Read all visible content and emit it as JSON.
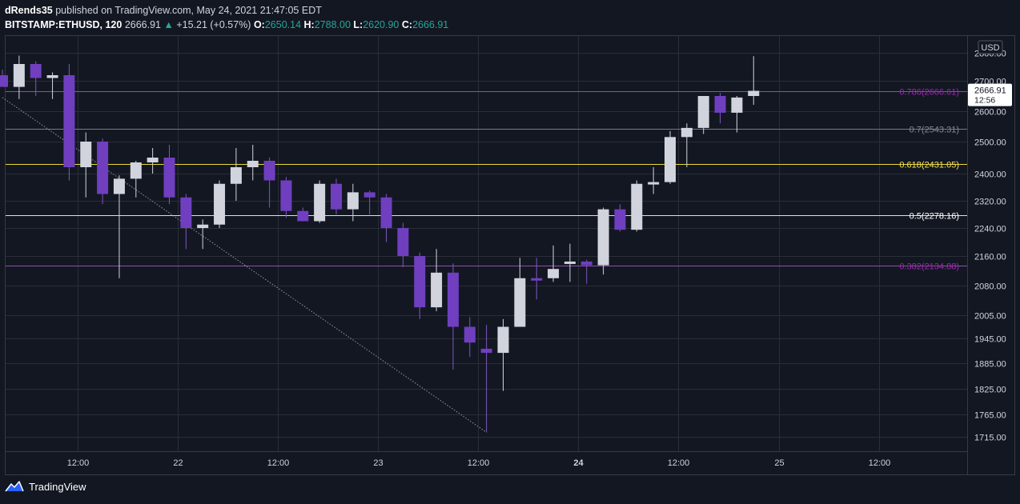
{
  "header": {
    "author": "dRends35",
    "published": "published on TradingView.com, May 24, 2021 21:47:05 EDT",
    "symbol": "BITSTAMP:ETHUSD, 120",
    "last": "2666.91",
    "change_arrow": "▲",
    "change": "+15.21 (+0.57%)",
    "o_label": "O:",
    "o_value": "2650.14",
    "h_label": "H:",
    "h_value": "2788.00",
    "l_label": "L:",
    "l_value": "2620.90",
    "c_label": "C:",
    "c_value": "2666.91"
  },
  "footer": {
    "brand": "TradingView",
    "logo_icon": "tradingview-logo-icon"
  },
  "chart_data": {
    "type": "candlestick",
    "title": "BITSTAMP:ETHUSD, 120",
    "currency": "USD",
    "y_ticks": [
      "2800.00",
      "2700.00",
      "2600.00",
      "2500.00",
      "2400.00",
      "2320.00",
      "2240.00",
      "2160.00",
      "2080.00",
      "2005.00",
      "1945.00",
      "1885.00",
      "1825.00",
      "1765.00",
      "1715.00"
    ],
    "x_ticks": [
      {
        "index": 4.5,
        "label": "12:00",
        "bold": false
      },
      {
        "index": 10.5,
        "label": "22",
        "bold": false
      },
      {
        "index": 16.5,
        "label": "12:00",
        "bold": false
      },
      {
        "index": 22.5,
        "label": "23",
        "bold": false
      },
      {
        "index": 28.5,
        "label": "12:00",
        "bold": false
      },
      {
        "index": 34.5,
        "label": "24",
        "bold": true
      },
      {
        "index": 40.5,
        "label": "12:00",
        "bold": false
      },
      {
        "index": 46.5,
        "label": "25",
        "bold": false
      },
      {
        "index": 52.5,
        "label": "12:00",
        "bold": false
      }
    ],
    "candles": [
      {
        "o": 2720,
        "h": 2740,
        "l": 2680,
        "c": 2680
      },
      {
        "o": 2680,
        "h": 2790,
        "l": 2640,
        "c": 2760
      },
      {
        "o": 2760,
        "h": 2770,
        "l": 2650,
        "c": 2710
      },
      {
        "o": 2710,
        "h": 2730,
        "l": 2640,
        "c": 2720
      },
      {
        "o": 2720,
        "h": 2760,
        "l": 2380,
        "c": 2420
      },
      {
        "o": 2420,
        "h": 2530,
        "l": 2330,
        "c": 2500
      },
      {
        "o": 2500,
        "h": 2510,
        "l": 2310,
        "c": 2340
      },
      {
        "o": 2340,
        "h": 2395,
        "l": 2100,
        "c": 2385
      },
      {
        "o": 2385,
        "h": 2440,
        "l": 2330,
        "c": 2435
      },
      {
        "o": 2435,
        "h": 2480,
        "l": 2400,
        "c": 2450
      },
      {
        "o": 2450,
        "h": 2490,
        "l": 2310,
        "c": 2330
      },
      {
        "o": 2330,
        "h": 2340,
        "l": 2180,
        "c": 2240
      },
      {
        "o": 2240,
        "h": 2265,
        "l": 2180,
        "c": 2250
      },
      {
        "o": 2250,
        "h": 2380,
        "l": 2240,
        "c": 2370
      },
      {
        "o": 2370,
        "h": 2480,
        "l": 2320,
        "c": 2420
      },
      {
        "o": 2420,
        "h": 2490,
        "l": 2380,
        "c": 2440
      },
      {
        "o": 2440,
        "h": 2450,
        "l": 2300,
        "c": 2380
      },
      {
        "o": 2380,
        "h": 2390,
        "l": 2270,
        "c": 2290
      },
      {
        "o": 2290,
        "h": 2300,
        "l": 2260,
        "c": 2260
      },
      {
        "o": 2260,
        "h": 2380,
        "l": 2255,
        "c": 2370
      },
      {
        "o": 2370,
        "h": 2385,
        "l": 2280,
        "c": 2295
      },
      {
        "o": 2295,
        "h": 2370,
        "l": 2260,
        "c": 2345
      },
      {
        "o": 2345,
        "h": 2350,
        "l": 2280,
        "c": 2330
      },
      {
        "o": 2330,
        "h": 2340,
        "l": 2200,
        "c": 2240
      },
      {
        "o": 2240,
        "h": 2255,
        "l": 2130,
        "c": 2160
      },
      {
        "o": 2160,
        "h": 2170,
        "l": 1995,
        "c": 2025
      },
      {
        "o": 2025,
        "h": 2180,
        "l": 2015,
        "c": 2115
      },
      {
        "o": 2115,
        "h": 2140,
        "l": 1870,
        "c": 1975
      },
      {
        "o": 1975,
        "h": 2000,
        "l": 1900,
        "c": 1935
      },
      {
        "o": 1920,
        "h": 1980,
        "l": 1725,
        "c": 1910
      },
      {
        "o": 1910,
        "h": 1995,
        "l": 1820,
        "c": 1975
      },
      {
        "o": 1975,
        "h": 2155,
        "l": 1975,
        "c": 2100
      },
      {
        "o": 2100,
        "h": 2155,
        "l": 2045,
        "c": 2095
      },
      {
        "o": 2100,
        "h": 2190,
        "l": 2090,
        "c": 2125
      },
      {
        "o": 2140,
        "h": 2195,
        "l": 2090,
        "c": 2145
      },
      {
        "o": 2145,
        "h": 2150,
        "l": 2085,
        "c": 2135
      },
      {
        "o": 2135,
        "h": 2300,
        "l": 2110,
        "c": 2295
      },
      {
        "o": 2295,
        "h": 2310,
        "l": 2230,
        "c": 2235
      },
      {
        "o": 2235,
        "h": 2380,
        "l": 2230,
        "c": 2370
      },
      {
        "o": 2370,
        "h": 2420,
        "l": 2340,
        "c": 2375
      },
      {
        "o": 2375,
        "h": 2535,
        "l": 2370,
        "c": 2515
      },
      {
        "o": 2515,
        "h": 2560,
        "l": 2420,
        "c": 2545
      },
      {
        "o": 2545,
        "h": 2650,
        "l": 2525,
        "c": 2650
      },
      {
        "o": 2650,
        "h": 2660,
        "l": 2560,
        "c": 2595
      },
      {
        "o": 2595,
        "h": 2650,
        "l": 2530,
        "c": 2645
      },
      {
        "o": 2650,
        "h": 2788,
        "l": 2621,
        "c": 2667
      }
    ],
    "fib_levels": [
      {
        "ratio": "0.786",
        "value": 2666.61,
        "label": "0.786(2666.61)",
        "color": "#9c27b0",
        "line": "#8a52a8"
      },
      {
        "ratio": "0.7",
        "value": 2543.31,
        "label": "0.7(2543.31)",
        "color": "#868993",
        "line": "#787b86"
      },
      {
        "ratio": "0.618",
        "value": 2431.05,
        "label": "0.618(2431.05)",
        "color": "#f5e35a",
        "line": "#e8d83c"
      },
      {
        "ratio": "0.5",
        "value": 2278.16,
        "label": "0.5(2278.16)",
        "color": "#ffffff",
        "line": "#e0e0e0"
      },
      {
        "ratio": "0.382",
        "value": 2134.88,
        "label": "0.382(2134.88)",
        "color": "#9c27b0",
        "line": "#8a52a8"
      }
    ],
    "trendline": {
      "from": {
        "index": 0,
        "value": 2645
      },
      "to": {
        "index": 29,
        "value": 1725
      }
    },
    "price_label": {
      "value": 2666.91,
      "text": "2666.91",
      "countdown": "12:56"
    },
    "colors": {
      "up_body": "#d1d4dc",
      "down_body": "#6f3fc0",
      "down_wick": "#7e57c2",
      "grid": "#2a2e39",
      "axis_text": "#d1d4dc",
      "background": "#131722"
    }
  }
}
